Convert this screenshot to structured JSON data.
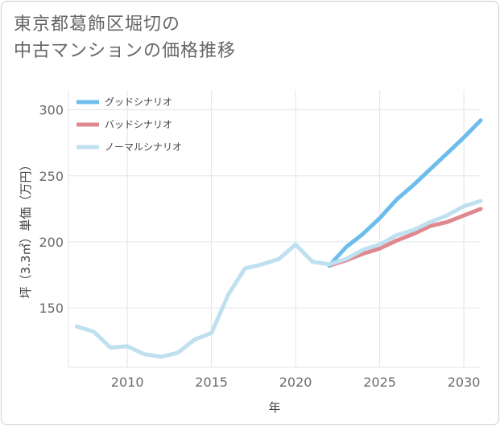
{
  "title_line1": "東京都葛飾区堀切の",
  "title_line2": "中古マンションの価格推移",
  "chart_data": {
    "type": "line",
    "xlabel": "年",
    "ylabel": "坪（3.3㎡）単価（万円）",
    "xlim": [
      2006.5,
      2031
    ],
    "ylim": [
      105,
      315
    ],
    "x_ticks": [
      2010,
      2015,
      2020,
      2025,
      2030
    ],
    "y_ticks": [
      150,
      200,
      250,
      300
    ],
    "legend_position": "top-left",
    "grid": true,
    "series": [
      {
        "name": "グッドシナリオ",
        "color": "#6cbdec",
        "x": [
          2022,
          2023,
          2024,
          2025,
          2026,
          2027,
          2028,
          2029,
          2030,
          2031
        ],
        "values": [
          182,
          196,
          206,
          218,
          232,
          243,
          255,
          267,
          279,
          292
        ]
      },
      {
        "name": "バッドシナリオ",
        "color": "#e0888f",
        "x": [
          2022,
          2023,
          2024,
          2025,
          2026,
          2027,
          2028,
          2029,
          2030,
          2031
        ],
        "values": [
          182,
          186,
          191,
          195,
          201,
          206,
          212,
          215,
          220,
          225
        ]
      },
      {
        "name": "ノーマルシナリオ",
        "color": "#bfe0ef",
        "x": [
          2007,
          2008,
          2009,
          2010,
          2011,
          2012,
          2013,
          2014,
          2015,
          2016,
          2017,
          2018,
          2019,
          2020,
          2021,
          2022,
          2023,
          2024,
          2025,
          2026,
          2027,
          2028,
          2029,
          2030,
          2031
        ],
        "values": [
          136,
          132,
          120,
          121,
          115,
          113,
          116,
          126,
          131,
          160,
          180,
          183,
          187,
          198,
          185,
          183,
          187,
          194,
          198,
          205,
          209,
          215,
          220,
          227,
          231
        ]
      }
    ]
  }
}
